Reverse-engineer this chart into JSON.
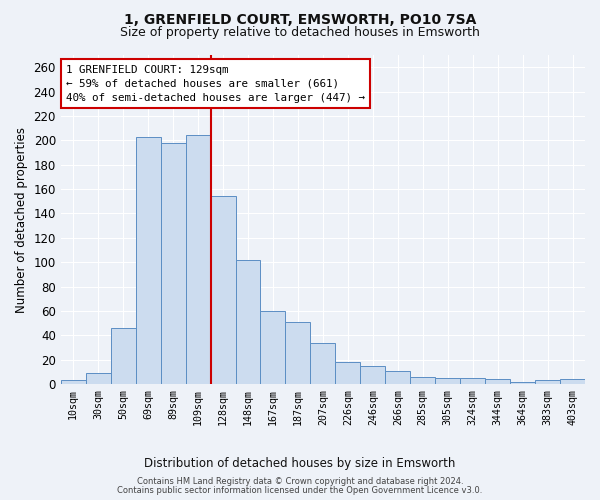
{
  "title": "1, GRENFIELD COURT, EMSWORTH, PO10 7SA",
  "subtitle": "Size of property relative to detached houses in Emsworth",
  "xlabel": "Distribution of detached houses by size in Emsworth",
  "ylabel": "Number of detached properties",
  "categories": [
    "10sqm",
    "30sqm",
    "50sqm",
    "69sqm",
    "89sqm",
    "109sqm",
    "128sqm",
    "148sqm",
    "167sqm",
    "187sqm",
    "207sqm",
    "226sqm",
    "246sqm",
    "266sqm",
    "285sqm",
    "305sqm",
    "324sqm",
    "344sqm",
    "364sqm",
    "383sqm",
    "403sqm"
  ],
  "values": [
    3,
    9,
    46,
    203,
    198,
    204,
    154,
    102,
    60,
    51,
    34,
    18,
    15,
    11,
    6,
    5,
    5,
    4,
    2,
    3,
    4
  ],
  "bar_color": "#ccdcef",
  "bar_edge_color": "#5b8ec4",
  "vline_x_index": 5.5,
  "annotation_line1": "1 GRENFIELD COURT: 129sqm",
  "annotation_line2": "← 59% of detached houses are smaller (661)",
  "annotation_line3": "40% of semi-detached houses are larger (447) →",
  "annotation_box_color": "#ffffff",
  "annotation_box_edge_color": "#cc0000",
  "vline_color": "#cc0000",
  "background_color": "#eef2f8",
  "grid_color": "#ffffff",
  "ylim": [
    0,
    270
  ],
  "yticks": [
    0,
    20,
    40,
    60,
    80,
    100,
    120,
    140,
    160,
    180,
    200,
    220,
    240,
    260
  ],
  "footer_line1": "Contains HM Land Registry data © Crown copyright and database right 2024.",
  "footer_line2": "Contains public sector information licensed under the Open Government Licence v3.0.",
  "title_fontsize": 10,
  "subtitle_fontsize": 9
}
